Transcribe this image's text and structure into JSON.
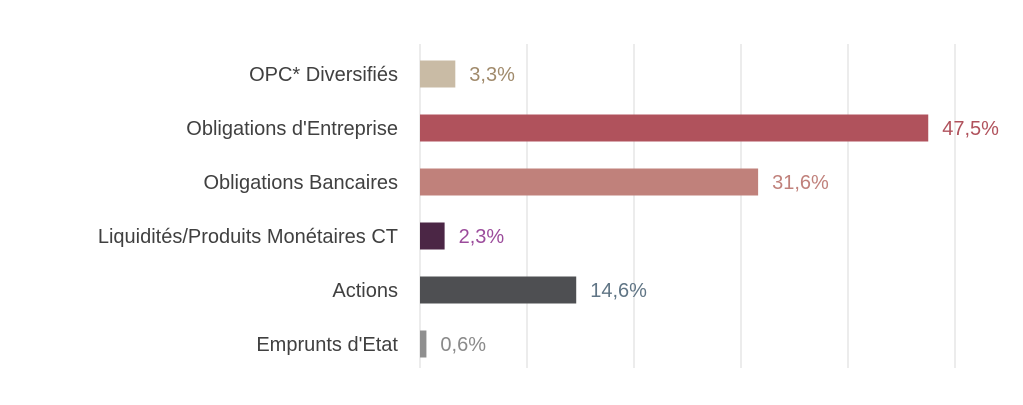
{
  "chart_data": {
    "type": "bar",
    "orientation": "horizontal",
    "title": "",
    "xlabel": "",
    "ylabel": "",
    "xlim": [
      0,
      50
    ],
    "grid": true,
    "legend": "none",
    "categories": [
      "OPC* Diversifiés",
      "Obligations d'Entreprise",
      "Obligations Bancaires",
      "Liquidités/Produits Monétaires CT",
      "Actions",
      "Emprunts d'Etat"
    ],
    "values": [
      3.3,
      47.5,
      31.6,
      2.3,
      14.6,
      0.6
    ],
    "value_labels": [
      "3,3%",
      "47,5%",
      "31,6%",
      "2,3%",
      "14,6%",
      "0,6%"
    ],
    "bar_colors": [
      "#c9bba5",
      "#b0525c",
      "#c0817b",
      "#4b2645",
      "#4e4f52",
      "#8f8f8f"
    ],
    "label_colors": [
      "#a08a6b",
      "#b0525c",
      "#c0817b",
      "#9b4b9b",
      "#607585",
      "#8a8a8a"
    ]
  }
}
